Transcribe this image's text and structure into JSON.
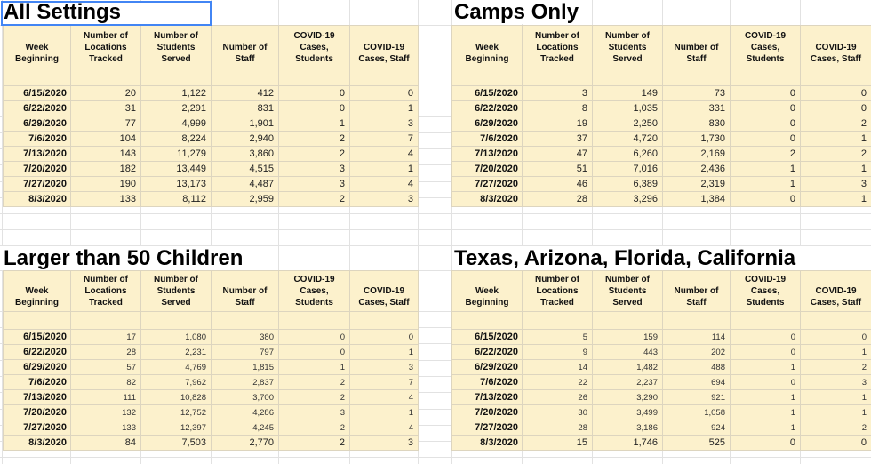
{
  "app": {
    "kind": "spreadsheet-grid"
  },
  "colors": {
    "table_fill": "#FCF1CC",
    "gridline": "#E2E2E2",
    "selection_border": "#4285F4"
  },
  "column_headers": [
    "Week\nBeginning",
    "Number of\nLocations\nTracked",
    "Number of\nStudents\nServed",
    "Number of\nStaff",
    "COVID-19\nCases,\nStudents",
    "COVID-19\nCases, Staff"
  ],
  "tables": [
    {
      "title": "All Settings",
      "selected": true,
      "rows": [
        [
          "6/15/2020",
          "20",
          "1,122",
          "412",
          "0",
          "0"
        ],
        [
          "6/22/2020",
          "31",
          "2,291",
          "831",
          "0",
          "1"
        ],
        [
          "6/29/2020",
          "77",
          "4,999",
          "1,901",
          "1",
          "3"
        ],
        [
          "7/6/2020",
          "104",
          "8,224",
          "2,940",
          "2",
          "7"
        ],
        [
          "7/13/2020",
          "143",
          "11,279",
          "3,860",
          "2",
          "4"
        ],
        [
          "7/20/2020",
          "182",
          "13,449",
          "4,515",
          "3",
          "1"
        ],
        [
          "7/27/2020",
          "190",
          "13,173",
          "4,487",
          "3",
          "4"
        ],
        [
          "8/3/2020",
          "133",
          "8,112",
          "2,959",
          "2",
          "3"
        ]
      ]
    },
    {
      "title": "Camps Only",
      "selected": false,
      "rows": [
        [
          "6/15/2020",
          "3",
          "149",
          "73",
          "0",
          "0"
        ],
        [
          "6/22/2020",
          "8",
          "1,035",
          "331",
          "0",
          "0"
        ],
        [
          "6/29/2020",
          "19",
          "2,250",
          "830",
          "0",
          "2"
        ],
        [
          "7/6/2020",
          "37",
          "4,720",
          "1,730",
          "0",
          "1"
        ],
        [
          "7/13/2020",
          "47",
          "6,260",
          "2,169",
          "2",
          "2"
        ],
        [
          "7/20/2020",
          "51",
          "7,016",
          "2,436",
          "1",
          "1"
        ],
        [
          "7/27/2020",
          "46",
          "6,389",
          "2,319",
          "1",
          "3"
        ],
        [
          "8/3/2020",
          "28",
          "3,296",
          "1,384",
          "0",
          "1"
        ]
      ]
    },
    {
      "title": "Larger than 50 Children",
      "selected": false,
      "rows": [
        [
          "6/15/2020",
          "17",
          "1,080",
          "380",
          "0",
          "0"
        ],
        [
          "6/22/2020",
          "28",
          "2,231",
          "797",
          "0",
          "1"
        ],
        [
          "6/29/2020",
          "57",
          "4,769",
          "1,815",
          "1",
          "3"
        ],
        [
          "7/6/2020",
          "82",
          "7,962",
          "2,837",
          "2",
          "7"
        ],
        [
          "7/13/2020",
          "111",
          "10,828",
          "3,700",
          "2",
          "4"
        ],
        [
          "7/20/2020",
          "132",
          "12,752",
          "4,286",
          "3",
          "1"
        ],
        [
          "7/27/2020",
          "133",
          "12,397",
          "4,245",
          "2",
          "4"
        ],
        [
          "8/3/2020",
          "84",
          "7,503",
          "2,770",
          "2",
          "3"
        ]
      ]
    },
    {
      "title": "Texas, Arizona, Florida, California",
      "selected": false,
      "rows": [
        [
          "6/15/2020",
          "5",
          "159",
          "114",
          "0",
          "0"
        ],
        [
          "6/22/2020",
          "9",
          "443",
          "202",
          "0",
          "1"
        ],
        [
          "6/29/2020",
          "14",
          "1,482",
          "488",
          "1",
          "2"
        ],
        [
          "7/6/2020",
          "22",
          "2,237",
          "694",
          "0",
          "3"
        ],
        [
          "7/13/2020",
          "26",
          "3,290",
          "921",
          "1",
          "1"
        ],
        [
          "7/20/2020",
          "30",
          "3,499",
          "1,058",
          "1",
          "1"
        ],
        [
          "7/27/2020",
          "28",
          "3,186",
          "924",
          "1",
          "2"
        ],
        [
          "8/3/2020",
          "15",
          "1,746",
          "525",
          "0",
          "0"
        ]
      ]
    }
  ]
}
